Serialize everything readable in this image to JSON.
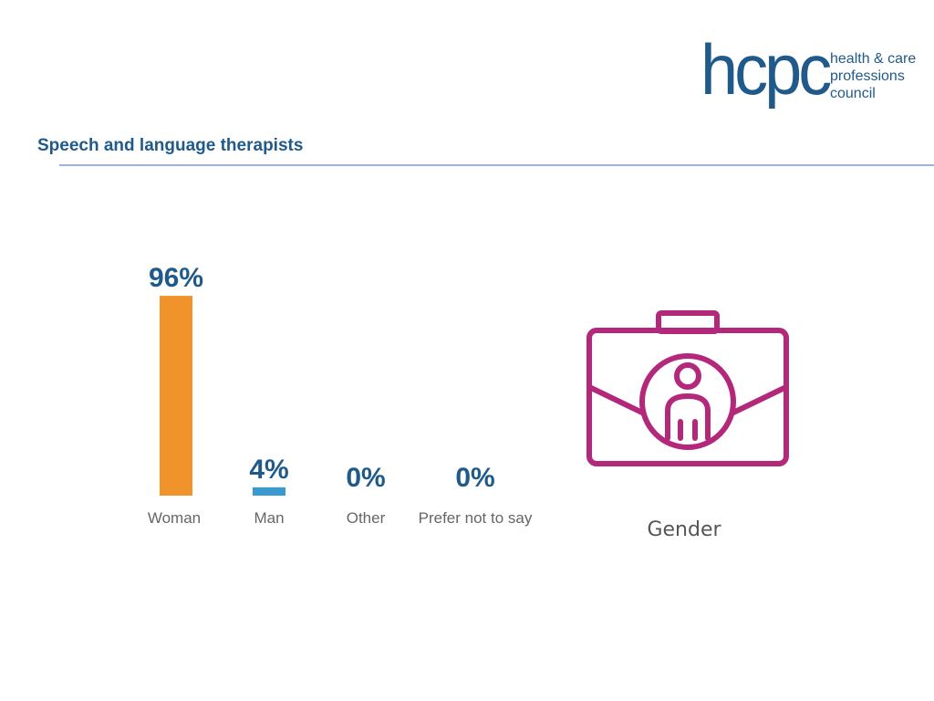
{
  "header": {
    "title": "Speech and language therapists"
  },
  "logo": {
    "mark": "hcpc",
    "lines": [
      "health & care",
      "professions",
      "council"
    ]
  },
  "icon": {
    "name": "briefcase-person-icon",
    "caption": "Gender"
  },
  "colors": {
    "brand": "#1f5a8a",
    "bar_woman": "#f0932b",
    "bar_man": "#3a9ad0",
    "icon": "#b3287a"
  },
  "chart_data": {
    "type": "bar",
    "categories": [
      "Woman",
      "Man",
      "Other",
      "Prefer not to say"
    ],
    "values": [
      96,
      4,
      0,
      0
    ],
    "value_labels": [
      "96%",
      "4%",
      "0%",
      "0%"
    ],
    "title": "",
    "xlabel": "",
    "ylabel": "",
    "ylim": [
      0,
      100
    ],
    "grid": false,
    "legend": "none"
  }
}
